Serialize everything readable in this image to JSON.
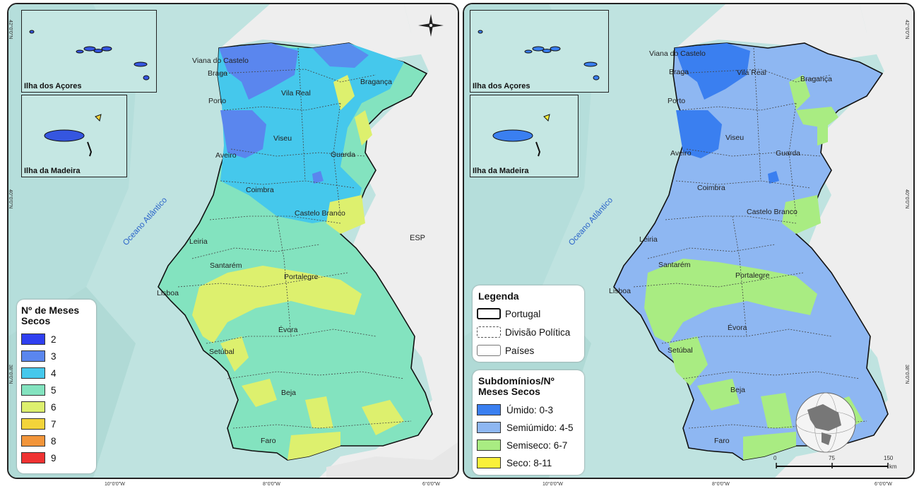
{
  "colors": {
    "ocean": "#bfe3e0",
    "land_other": "#eeeeee",
    "border": "#222222"
  },
  "left_map": {
    "insets": {
      "azores_title": "Ilha dos Açores",
      "madeira_title": "Ilha da Madeira"
    },
    "cities": [
      "Viana do Castelo",
      "Braga",
      "Vila Real",
      "Bragança",
      "Porto",
      "Viseu",
      "Aveiro",
      "Guarda",
      "Coimbra",
      "Castelo Branco",
      "Leiria",
      "Santarém",
      "Portalegre",
      "Lisboa",
      "Évora",
      "Setúbal",
      "Beja",
      "Faro"
    ],
    "ocean_label": "Oceano Atlântico",
    "country_label": "ESP",
    "lon_labels": [
      "10°0'0\"W",
      "8°0'0\"W",
      "6°0'0\"W"
    ],
    "lat_labels": [
      "42°0'0\"N",
      "40°0'0\"N",
      "38°0'0\"N"
    ],
    "legend": {
      "title": "Nº de Meses Secos",
      "items": [
        {
          "label": "2",
          "color": "#2f3ff0"
        },
        {
          "label": "3",
          "color": "#5a86ee"
        },
        {
          "label": "4",
          "color": "#45c8ec"
        },
        {
          "label": "5",
          "color": "#83e3bf"
        },
        {
          "label": "6",
          "color": "#ddf06e"
        },
        {
          "label": "7",
          "color": "#f3d43a"
        },
        {
          "label": "8",
          "color": "#f2953a"
        },
        {
          "label": "9",
          "color": "#ef3232"
        }
      ]
    }
  },
  "right_map": {
    "insets": {
      "azores_title": "Ilha dos Açores",
      "madeira_title": "Ilha da Madeira"
    },
    "cities": [
      "Viana do Castelo",
      "Braga",
      "Vila Real",
      "Bragança",
      "Porto",
      "Viseu",
      "Aveiro",
      "Guarda",
      "Coimbra",
      "Castelo Branco",
      "Leiria",
      "Santarém",
      "Portalegre",
      "Lisboa",
      "Évora",
      "Setúbal",
      "Beja",
      "Faro"
    ],
    "ocean_label": "Oceano Atlântico",
    "lon_labels": [
      "10°0'0\"W",
      "8°0'0\"W",
      "6°0'0\"W"
    ],
    "lat_labels": [
      "42°0'0\"N",
      "40°0'0\"N",
      "38°0'0\"N"
    ],
    "legend": {
      "title": "Legenda",
      "items": [
        {
          "label": "Portugal",
          "style": "solid"
        },
        {
          "label": "Divisão Política",
          "style": "dashed"
        },
        {
          "label": "Países",
          "style": "thin"
        }
      ]
    },
    "subdomains": {
      "title": "Subdomínios/Nº Meses Secos",
      "items": [
        {
          "label": "Úmido: 0-3",
          "color": "#3a7ff0"
        },
        {
          "label": "Semiúmido: 4-5",
          "color": "#8eb7f2"
        },
        {
          "label": "Semiseco: 6-7",
          "color": "#a9ec82"
        },
        {
          "label": "Seco: 8-11",
          "color": "#f9f03a"
        }
      ]
    },
    "scale_bar": {
      "ticks": [
        "0",
        "75",
        "150"
      ],
      "unit": "km"
    }
  }
}
